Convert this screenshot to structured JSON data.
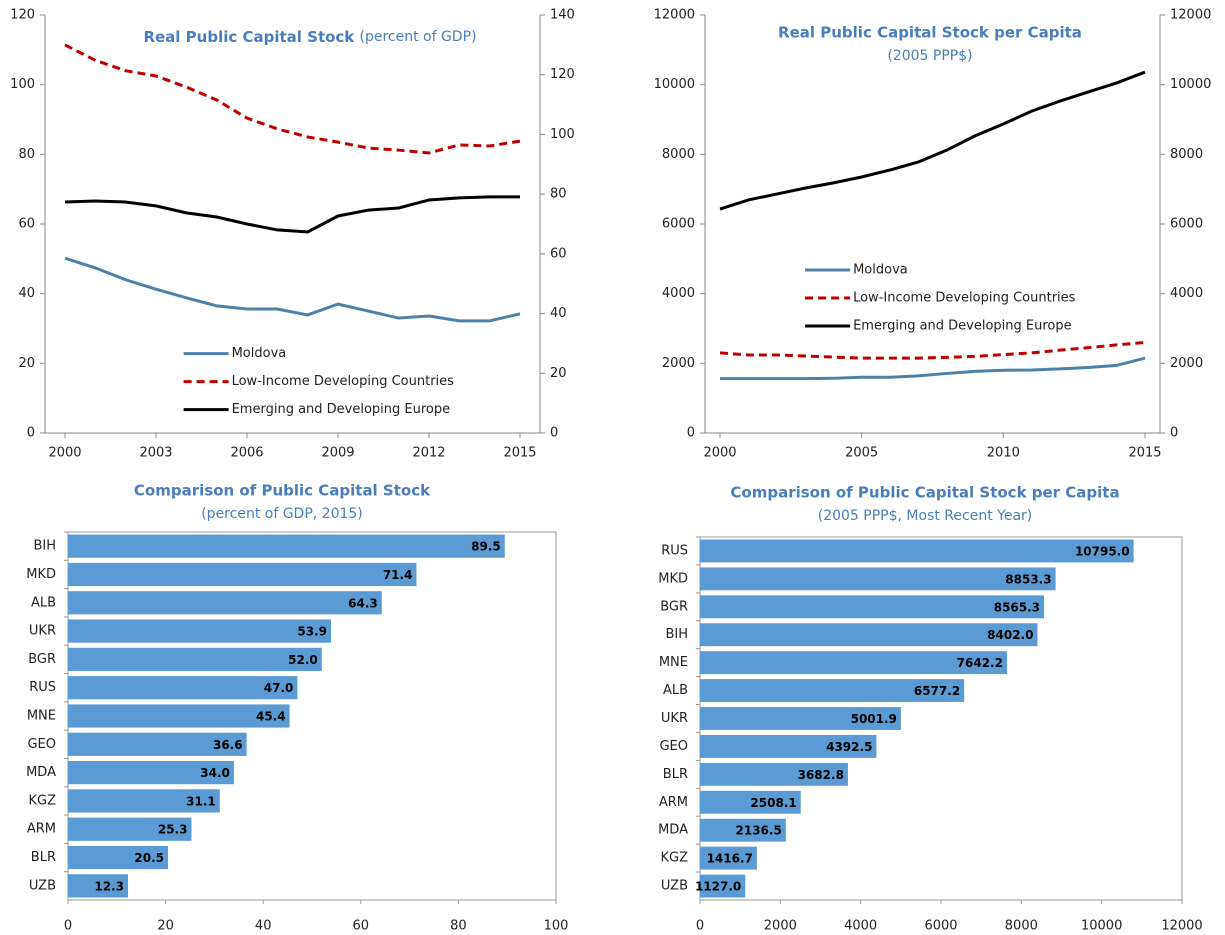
{
  "chart_data": [
    {
      "type": "line",
      "title": "Real Public Capital Stock",
      "subtitle": "(percent of GDP)",
      "x": [
        2000,
        2001,
        2002,
        2003,
        2004,
        2005,
        2006,
        2007,
        2008,
        2009,
        2010,
        2011,
        2012,
        2013,
        2014,
        2015
      ],
      "xlim": [
        2000,
        2015
      ],
      "xticks": [
        2000,
        2003,
        2006,
        2009,
        2012,
        2015
      ],
      "ylim": [
        0,
        120
      ],
      "yticks": [
        0,
        20,
        40,
        60,
        80,
        100,
        120
      ],
      "y2lim": [
        0,
        140
      ],
      "y2ticks": [
        0,
        20,
        40,
        60,
        80,
        100,
        120,
        140
      ],
      "legend": "lower center",
      "series": [
        {
          "name": "Moldova",
          "color": "#4f81a8",
          "linestyle": "solid",
          "values": [
            50.2,
            47.4,
            44,
            41.3,
            38.8,
            36.5,
            35.6,
            35.6,
            33.9,
            37,
            35,
            33,
            33.6,
            32.2,
            32.2,
            34.2
          ]
        },
        {
          "name": "Low-Income Developing Countries",
          "color": "#c00000",
          "linestyle": "dashed",
          "values": [
            111.4,
            107,
            104,
            102.5,
            99.3,
            95.6,
            90.4,
            87.3,
            85,
            83.5,
            81.8,
            81.2,
            80.4,
            82.7,
            82.4,
            83.8
          ]
        },
        {
          "name": "Emerging and Developing Europe",
          "color": "#000000",
          "linestyle": "solid",
          "values": [
            66.3,
            66.6,
            66.3,
            65.2,
            63.2,
            62,
            60,
            58.3,
            57.7,
            62.3,
            64,
            64.6,
            66.9,
            67.5,
            67.8,
            67.8
          ]
        }
      ]
    },
    {
      "type": "line",
      "title": "Real Public Capital Stock per Capita",
      "subtitle": "(2005 PPP$)",
      "x": [
        2000,
        2001,
        2002,
        2003,
        2004,
        2005,
        2006,
        2007,
        2008,
        2009,
        2010,
        2011,
        2012,
        2013,
        2014,
        2015
      ],
      "xlim": [
        2000,
        2015
      ],
      "xticks": [
        2000,
        2005,
        2010,
        2015
      ],
      "ylim": [
        0,
        12000
      ],
      "yticks": [
        0,
        2000,
        4000,
        6000,
        8000,
        10000,
        12000
      ],
      "y2lim": [
        0,
        12000
      ],
      "y2ticks": [
        0,
        2000,
        4000,
        6000,
        8000,
        10000,
        12000
      ],
      "legend": "center",
      "series": [
        {
          "name": "Moldova",
          "color": "#4f81a8",
          "linestyle": "solid",
          "values": [
            1560,
            1560,
            1560,
            1560,
            1570,
            1600,
            1600,
            1640,
            1710,
            1770,
            1800,
            1810,
            1840,
            1880,
            1940,
            2150
          ]
        },
        {
          "name": "Low-Income Developing Countries",
          "color": "#c00000",
          "linestyle": "dashed",
          "values": [
            2300,
            2240,
            2240,
            2210,
            2180,
            2150,
            2150,
            2150,
            2170,
            2200,
            2250,
            2300,
            2380,
            2450,
            2530,
            2600
          ]
        },
        {
          "name": "Emerging and Developing Europe",
          "color": "#000000",
          "linestyle": "solid",
          "values": [
            6430,
            6690,
            6860,
            7030,
            7180,
            7350,
            7550,
            7780,
            8120,
            8530,
            8870,
            9240,
            9530,
            9790,
            10050,
            10360
          ]
        }
      ]
    },
    {
      "type": "bar",
      "orientation": "horizontal",
      "title": "Comparison of Public Capital Stock",
      "subtitle": "(percent of GDP, 2015)",
      "color": "#5b9bd5",
      "categories": [
        "BIH",
        "MKD",
        "ALB",
        "UKR",
        "BGR",
        "RUS",
        "MNE",
        "GEO",
        "MDA",
        "KGZ",
        "ARM",
        "BLR",
        "UZB"
      ],
      "values": [
        89.5,
        71.4,
        64.3,
        53.9,
        52,
        47,
        45.4,
        36.6,
        34,
        31.1,
        25.3,
        20.5,
        12.3
      ],
      "value_labels": [
        "89.5",
        "71.4",
        "64.3",
        "53.9",
        "52.0",
        "47.0",
        "45.4",
        "36.6",
        "34.0",
        "31.1",
        "25.3",
        "20.5",
        "12.3"
      ],
      "xlim": [
        0,
        100
      ],
      "xticks": [
        0,
        20,
        40,
        60,
        80,
        100
      ]
    },
    {
      "type": "bar",
      "orientation": "horizontal",
      "title": "Comparison of Public Capital Stock per Capita",
      "subtitle": "(2005 PPP$, Most Recent Year)",
      "color": "#5b9bd5",
      "categories": [
        "RUS",
        "MKD",
        "BGR",
        "BIH",
        "MNE",
        "ALB",
        "UKR",
        "GEO",
        "BLR",
        "ARM",
        "MDA",
        "KGZ",
        "UZB"
      ],
      "values": [
        10795,
        8853.3,
        8565.3,
        8402,
        7642.2,
        6577.2,
        5001.9,
        4392.5,
        3682.8,
        2508.1,
        2136.5,
        1416.7,
        1127
      ],
      "value_labels": [
        "10795.0",
        "8853.3",
        "8565.3",
        "8402.0",
        "7642.2",
        "6577.2",
        "5001.9",
        "4392.5",
        "3682.8",
        "2508.1",
        "2136.5",
        "1416.7",
        "1127.0"
      ],
      "xlim": [
        0,
        12000
      ],
      "xticks": [
        0,
        2000,
        4000,
        6000,
        8000,
        10000,
        12000
      ]
    }
  ]
}
